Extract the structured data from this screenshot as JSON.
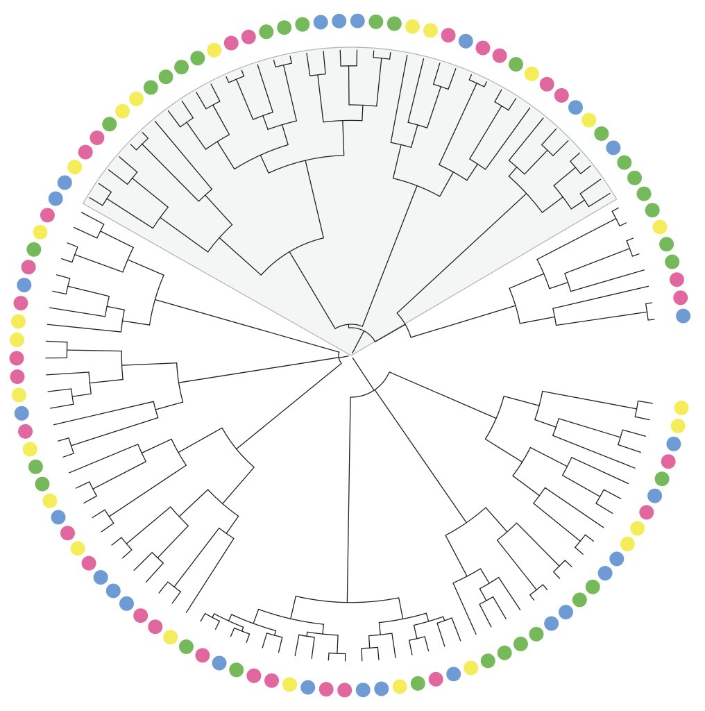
{
  "palette": {
    "pink": "#e0689f",
    "blue": "#6f9bd4",
    "green": "#75b95b",
    "yellow": "#f5ec5a"
  },
  "branch_color": "#1f1f1f",
  "highlight_fill": "#f4f6f5",
  "highlight_stroke": "#b0b3b0",
  "leaf_colors": [
    "yellow",
    "yellow",
    "blue",
    "pink",
    "green",
    "blue",
    "pink",
    "yellow",
    "yellow",
    "blue",
    "blue",
    "green",
    "green",
    "blue",
    "blue",
    "green",
    "green",
    "green",
    "green",
    "yellow",
    "blue",
    "pink",
    "green",
    "yellow",
    "blue",
    "blue",
    "pink",
    "pink",
    "blue",
    "yellow",
    "pink",
    "pink",
    "green",
    "blue",
    "pink",
    "green",
    "yellow",
    "pink",
    "pink",
    "blue",
    "blue",
    "blue",
    "pink",
    "yellow",
    "pink",
    "blue",
    "yellow",
    "green",
    "green",
    "yellow",
    "pink",
    "blue",
    "yellow",
    "pink",
    "pink",
    "yellow",
    "yellow",
    "pink",
    "blue",
    "pink",
    "green",
    "yellow",
    "pink",
    "blue",
    "blue",
    "yellow",
    "pink",
    "pink",
    "green",
    "yellow",
    "yellow",
    "green",
    "green",
    "green",
    "green",
    "yellow",
    "pink",
    "pink",
    "green",
    "green",
    "green",
    "blue",
    "blue",
    "blue",
    "green",
    "green",
    "yellow",
    "yellow",
    "pink",
    "blue",
    "pink",
    "pink",
    "green",
    "yellow",
    "pink",
    "pink",
    "blue",
    "yellow",
    "green",
    "blue",
    "green",
    "green",
    "green",
    "green",
    "yellow",
    "green",
    "green",
    "pink",
    "pink",
    "blue"
  ]
}
